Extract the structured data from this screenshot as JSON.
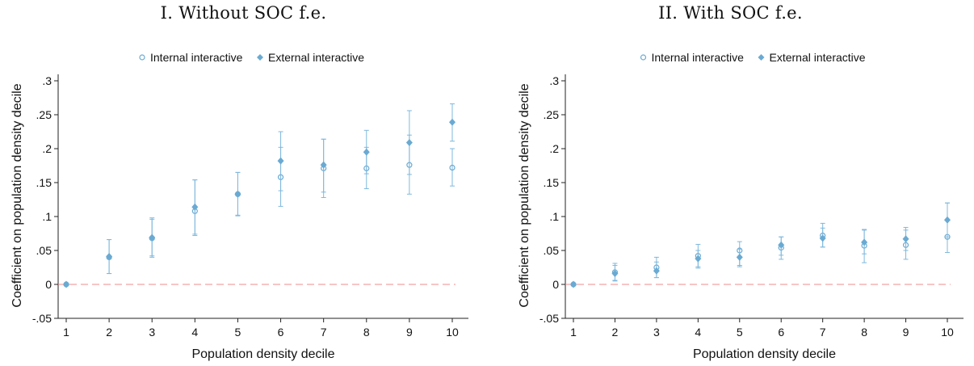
{
  "colors": {
    "marker": "#6aaad2",
    "errorbar": "#7fb8dc",
    "zero_line": "#f08c8c",
    "axis": "#222222"
  },
  "chart_data": [
    {
      "type": "scatter",
      "title": "I. Without SOC f.e.",
      "xlabel": "Population density decile",
      "ylabel": "Coefficient on population density decile",
      "xlim": [
        1,
        10
      ],
      "ylim": [
        -0.05,
        0.3
      ],
      "xticks": [
        "1",
        "2",
        "3",
        "4",
        "5",
        "6",
        "7",
        "8",
        "9",
        "10"
      ],
      "yticks": [
        ".3",
        ".25",
        ".2",
        ".15",
        ".1",
        ".05",
        "0",
        "-.05"
      ],
      "grid": false,
      "legend": "top-center",
      "reference_line": 0,
      "series": [
        {
          "name": "Internal interactive",
          "marker": "hollow-circle",
          "x": [
            1,
            2,
            3,
            4,
            5,
            6,
            7,
            8,
            9,
            10
          ],
          "y": [
            0,
            0.04,
            0.068,
            0.108,
            0.133,
            0.158,
            0.171,
            0.171,
            0.176,
            0.172
          ],
          "ci_low": [
            null,
            0.016,
            0.04,
            0.072,
            0.101,
            0.115,
            0.128,
            0.141,
            0.133,
            0.145
          ],
          "ci_high": [
            null,
            0.066,
            0.096,
            0.154,
            0.165,
            0.202,
            0.214,
            0.202,
            0.22,
            0.2
          ]
        },
        {
          "name": "External interactive",
          "marker": "filled-diamond",
          "x": [
            1,
            2,
            3,
            4,
            5,
            6,
            7,
            8,
            9,
            10
          ],
          "y": [
            0,
            0.041,
            0.069,
            0.114,
            0.133,
            0.182,
            0.176,
            0.195,
            0.209,
            0.239
          ],
          "ci_low": [
            null,
            0.016,
            0.042,
            0.074,
            0.102,
            0.138,
            0.136,
            0.163,
            0.162,
            0.211
          ],
          "ci_high": [
            null,
            0.066,
            0.098,
            0.154,
            0.165,
            0.225,
            0.214,
            0.227,
            0.256,
            0.266
          ]
        }
      ]
    },
    {
      "type": "scatter",
      "title": "II. With SOC f.e.",
      "xlabel": "Population density decile",
      "ylabel": "Coefficient on population density decile",
      "xlim": [
        1,
        10
      ],
      "ylim": [
        -0.05,
        0.3
      ],
      "xticks": [
        "1",
        "2",
        "3",
        "4",
        "5",
        "6",
        "7",
        "8",
        "9",
        "10"
      ],
      "yticks": [
        ".3",
        ".25",
        ".2",
        ".15",
        ".1",
        ".05",
        "0",
        "-.05"
      ],
      "grid": false,
      "legend": "top-center",
      "reference_line": 0,
      "series": [
        {
          "name": "Internal interactive",
          "marker": "hollow-circle",
          "x": [
            1,
            2,
            3,
            4,
            5,
            6,
            7,
            8,
            9,
            10
          ],
          "y": [
            0,
            0.018,
            0.025,
            0.042,
            0.05,
            0.054,
            0.072,
            0.057,
            0.058,
            0.07
          ],
          "ci_low": [
            null,
            0.005,
            0.01,
            0.026,
            0.026,
            0.037,
            0.055,
            0.032,
            0.037,
            0.047
          ],
          "ci_high": [
            null,
            0.031,
            0.04,
            0.059,
            0.063,
            0.07,
            0.09,
            0.081,
            0.08,
            0.12
          ]
        },
        {
          "name": "External interactive",
          "marker": "filled-diamond",
          "x": [
            1,
            2,
            3,
            4,
            5,
            6,
            7,
            8,
            9,
            10
          ],
          "y": [
            0,
            0.016,
            0.02,
            0.038,
            0.04,
            0.058,
            0.068,
            0.062,
            0.067,
            0.095
          ],
          "ci_low": [
            null,
            0.006,
            0.01,
            0.024,
            0.028,
            0.043,
            0.055,
            0.045,
            0.05,
            0.07
          ],
          "ci_high": [
            null,
            0.028,
            0.033,
            0.05,
            0.052,
            0.07,
            0.083,
            0.08,
            0.084,
            0.12
          ]
        }
      ]
    }
  ]
}
